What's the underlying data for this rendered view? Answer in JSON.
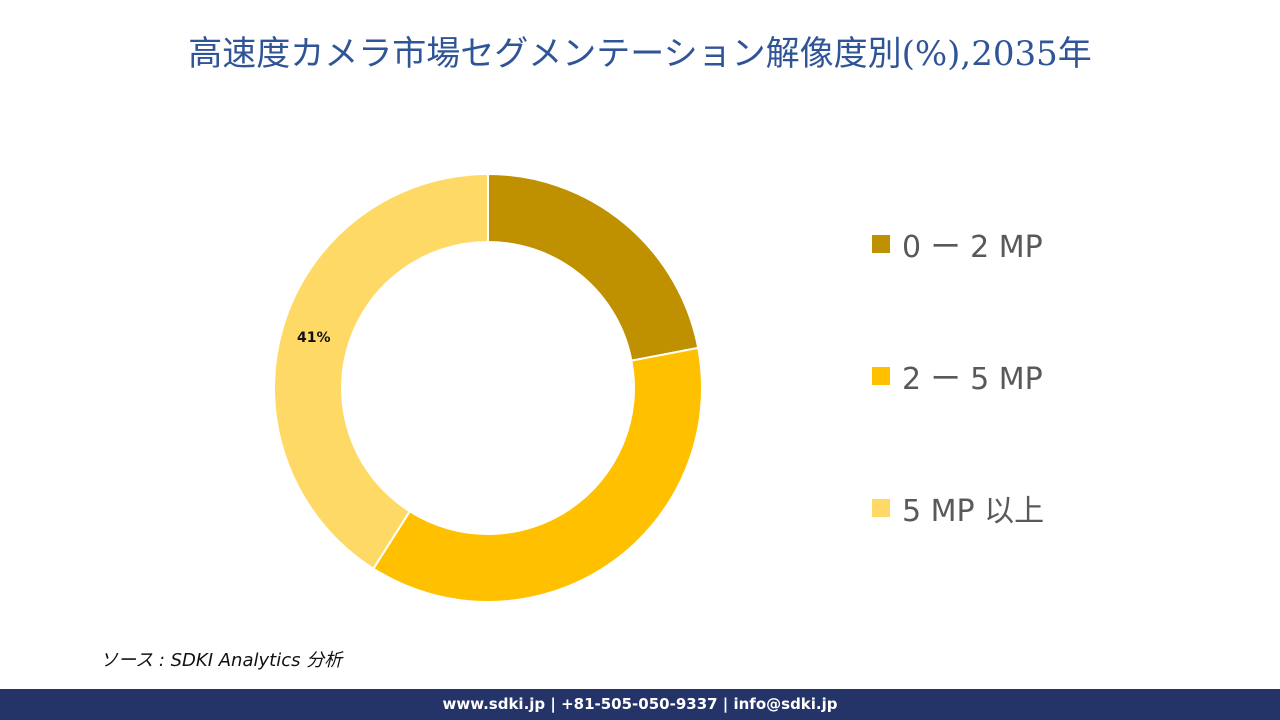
{
  "title": "高速度カメラ市場セグメンテーション解像度別(%),2035年",
  "chart_data": {
    "type": "pie",
    "subtype": "donut",
    "title": "高速度カメラ市場セグメンテーション解像度別(%),2035年",
    "categories": [
      "0 ー 2 MP",
      "2 ー 5 MP",
      "5 MP 以上"
    ],
    "values": [
      22,
      37,
      41
    ],
    "colors": [
      "#bf9000",
      "#ffc000",
      "#ffd966"
    ],
    "data_labels": [
      null,
      null,
      "41%"
    ],
    "legend_position": "right",
    "start_angle_deg": 0,
    "direction": "clockwise"
  },
  "legend": {
    "items": [
      {
        "label": "0 ー 2 MP",
        "color": "#bf9000"
      },
      {
        "label": "2 ー 5 MP",
        "color": "#ffc000"
      },
      {
        "label": "5 MP 以上",
        "color": "#ffd966"
      }
    ]
  },
  "labels": {
    "slice3": "41%"
  },
  "source": "ソース : SDKI Analytics  分析",
  "footer": "www.sdki.jp | +81-505-050-9337 | info@sdki.jp"
}
